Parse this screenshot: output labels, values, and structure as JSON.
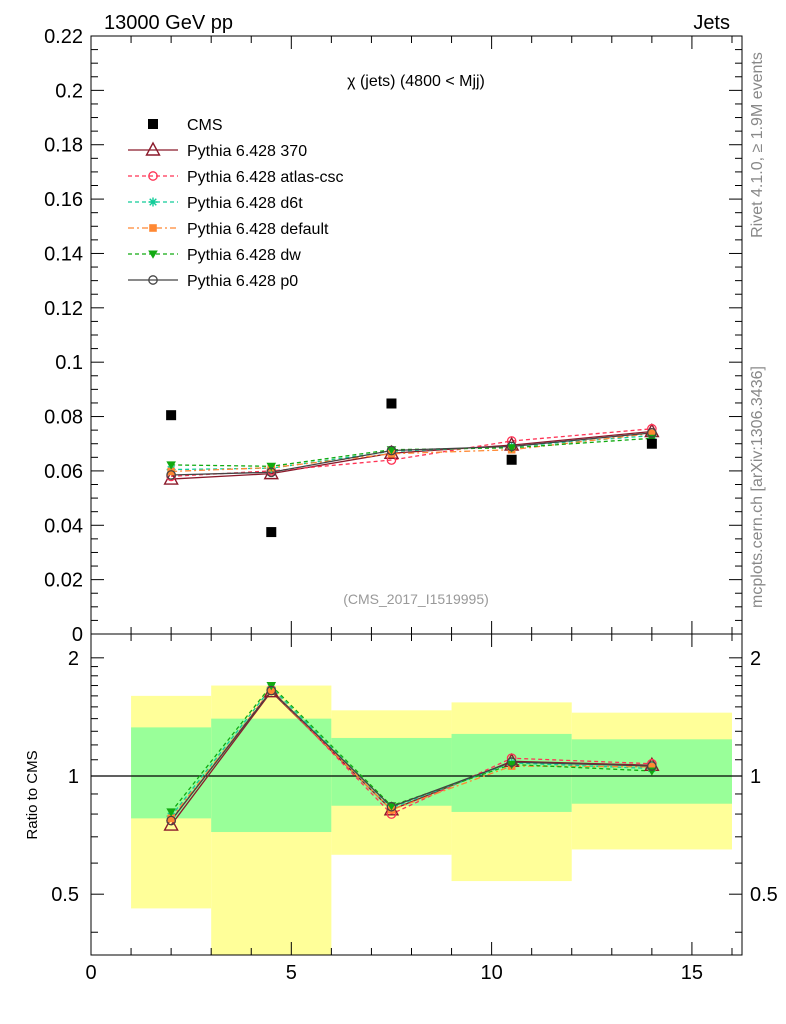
{
  "header": {
    "left": "13000 GeV pp",
    "right": "Jets"
  },
  "side": {
    "top": "Rivet 4.1.0, ≥ 1.9M events",
    "bottom": "mcplots.cern.ch [arXiv:1306.3436]"
  },
  "chart_data": [
    {
      "type": "scatter",
      "title": "χ (jets) (4800 < Mjj)",
      "watermark": "(CMS_2017_I1519995)",
      "xlim": [
        0,
        16.25
      ],
      "ylim": [
        0,
        0.22
      ],
      "yticks": [
        0,
        0.02,
        0.04,
        0.06,
        0.08,
        0.1,
        0.12,
        0.14,
        0.16,
        0.18,
        0.2,
        0.22
      ],
      "ytick_labels": [
        "0",
        "0.02",
        "0.04",
        "0.06",
        "0.08",
        "0.1",
        "0.12",
        "0.14",
        "0.16",
        "0.18",
        "0.2",
        "0.22"
      ],
      "x": [
        2,
        4.5,
        7.5,
        10.5,
        14
      ],
      "data": {
        "name": "CMS",
        "values": [
          0.0805,
          0.0375,
          0.0848,
          0.0641,
          0.07
        ],
        "color": "#000000"
      },
      "series": [
        {
          "name": "Pythia 6.428 370",
          "values": [
            0.057,
            0.059,
            0.0665,
            0.0695,
            0.0745
          ],
          "color": "#8b1a2b",
          "dash": "",
          "marker": "triangle-open"
        },
        {
          "name": "Pythia 6.428 atlas-csc",
          "values": [
            0.058,
            0.06,
            0.064,
            0.071,
            0.0755
          ],
          "color": "#ff3355",
          "dash": "4,3",
          "marker": "circle-open"
        },
        {
          "name": "Pythia 6.428 d6t",
          "values": [
            0.0605,
            0.061,
            0.0672,
            0.069,
            0.073
          ],
          "color": "#11cc99",
          "dash": "4,3",
          "marker": "star"
        },
        {
          "name": "Pythia 6.428 default",
          "values": [
            0.0598,
            0.0612,
            0.0663,
            0.0678,
            0.0738
          ],
          "color": "#ff8833",
          "dash": "6,3,2,3",
          "marker": "square"
        },
        {
          "name": "Pythia 6.428 dw",
          "values": [
            0.0622,
            0.0617,
            0.0678,
            0.0685,
            0.072
          ],
          "color": "#11aa11",
          "dash": "4,3",
          "marker": "triangle-down"
        },
        {
          "name": "Pythia 6.428 p0",
          "values": [
            0.0585,
            0.0595,
            0.0675,
            0.069,
            0.074
          ],
          "color": "#444444",
          "dash": "",
          "marker": "circle-open"
        }
      ]
    },
    {
      "type": "line",
      "ylabel": "Ratio to CMS",
      "xlabel": "",
      "xlim": [
        0,
        16.25
      ],
      "ylim": [
        0.35,
        2.3
      ],
      "log_y": true,
      "xticks": [
        0,
        5,
        10,
        15
      ],
      "xtick_labels": [
        "0",
        "5",
        "10",
        "15"
      ],
      "yticks": [
        0.5,
        1,
        2
      ],
      "ytick_labels": [
        "0.5",
        "1",
        "2"
      ],
      "bins": [
        [
          1,
          3
        ],
        [
          3,
          6
        ],
        [
          6,
          9
        ],
        [
          9,
          12
        ],
        [
          12,
          16
        ]
      ],
      "band_outer": [
        [
          0.46,
          1.6
        ],
        [
          0.35,
          1.7
        ],
        [
          0.63,
          1.47
        ],
        [
          0.54,
          1.54
        ],
        [
          0.65,
          1.45
        ]
      ],
      "band_inner": [
        [
          0.78,
          1.33
        ],
        [
          0.72,
          1.4
        ],
        [
          0.84,
          1.25
        ],
        [
          0.81,
          1.28
        ],
        [
          0.85,
          1.24
        ]
      ],
      "band_colors": {
        "outer": "#ffff99",
        "inner": "#99ff99"
      },
      "x": [
        2,
        4.5,
        7.5,
        10.5,
        14
      ],
      "series": [
        {
          "name": "Pythia 6.428 370",
          "values": [
            0.75,
            1.64,
            0.82,
            1.09,
            1.065
          ],
          "color": "#8b1a2b",
          "dash": "",
          "marker": "triangle-open"
        },
        {
          "name": "Pythia 6.428 atlas-csc",
          "values": [
            0.77,
            1.66,
            0.8,
            1.11,
            1.075
          ],
          "color": "#ff3355",
          "dash": "4,3",
          "marker": "circle-open"
        },
        {
          "name": "Pythia 6.428 d6t",
          "values": [
            0.79,
            1.68,
            0.83,
            1.08,
            1.045
          ],
          "color": "#11cc99",
          "dash": "4,3",
          "marker": "star"
        },
        {
          "name": "Pythia 6.428 default",
          "values": [
            0.78,
            1.65,
            0.82,
            1.06,
            1.055
          ],
          "color": "#ff8833",
          "dash": "6,3,2,3",
          "marker": "square"
        },
        {
          "name": "Pythia 6.428 dw",
          "values": [
            0.81,
            1.7,
            0.84,
            1.07,
            1.03
          ],
          "color": "#11aa11",
          "dash": "4,3",
          "marker": "triangle-down"
        },
        {
          "name": "Pythia 6.428 p0",
          "values": [
            0.77,
            1.65,
            0.835,
            1.085,
            1.06
          ],
          "color": "#444444",
          "dash": "",
          "marker": "circle-open"
        }
      ]
    }
  ]
}
